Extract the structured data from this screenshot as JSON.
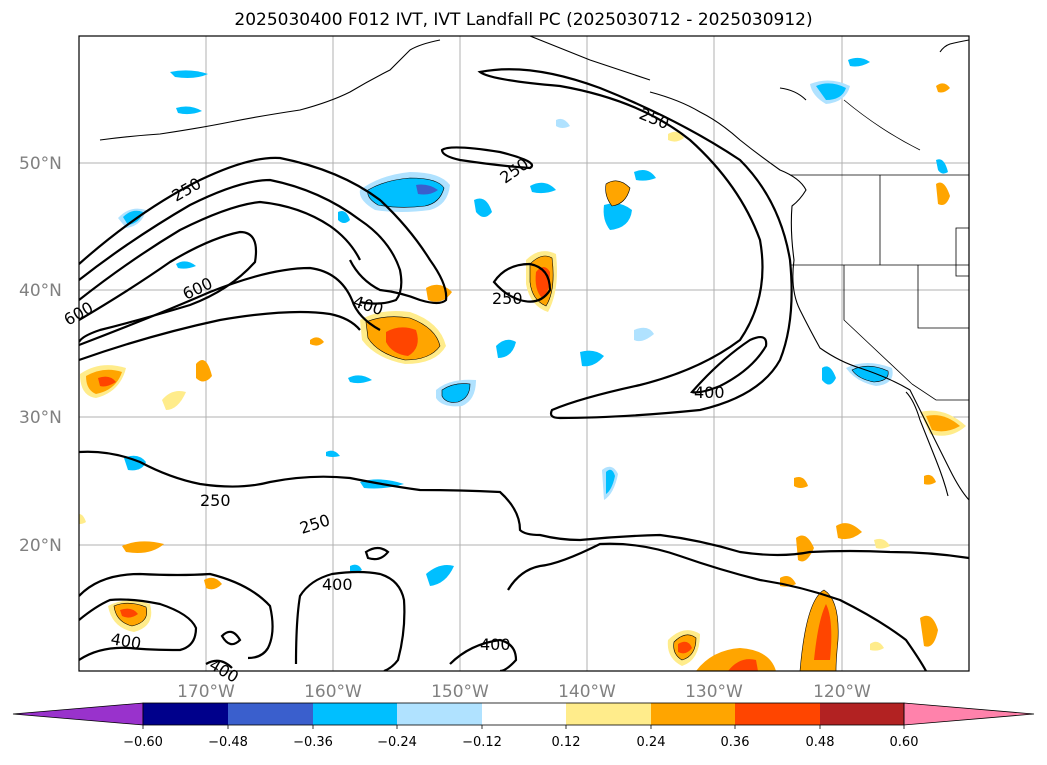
{
  "title": "2025030400 F012 IVT, IVT Landfall PC (2025030712 - 2025030912)",
  "lat_labels": [
    "50°N",
    "40°N",
    "30°N",
    "20°N"
  ],
  "lon_labels": [
    "170°W",
    "160°W",
    "150°W",
    "140°W",
    "130°W",
    "120°W"
  ],
  "contour_labels": [
    "250",
    "250",
    "250",
    "250",
    "250",
    "250",
    "400",
    "400",
    "400",
    "400",
    "400",
    "600",
    "600",
    "400"
  ],
  "colorbar": {
    "ticks": [
      "−0.60",
      "−0.48",
      "−0.36",
      "−0.24",
      "−0.12",
      "0.12",
      "0.24",
      "0.36",
      "0.48",
      "0.60"
    ],
    "colors": [
      "#9932cc",
      "#00008b",
      "#3a5fcd",
      "#00bfff",
      "#b0e2ff",
      "#ffffff",
      "#ffec8b",
      "#ffa500",
      "#ff4500",
      "#b22222",
      "#ff82ab"
    ]
  }
}
